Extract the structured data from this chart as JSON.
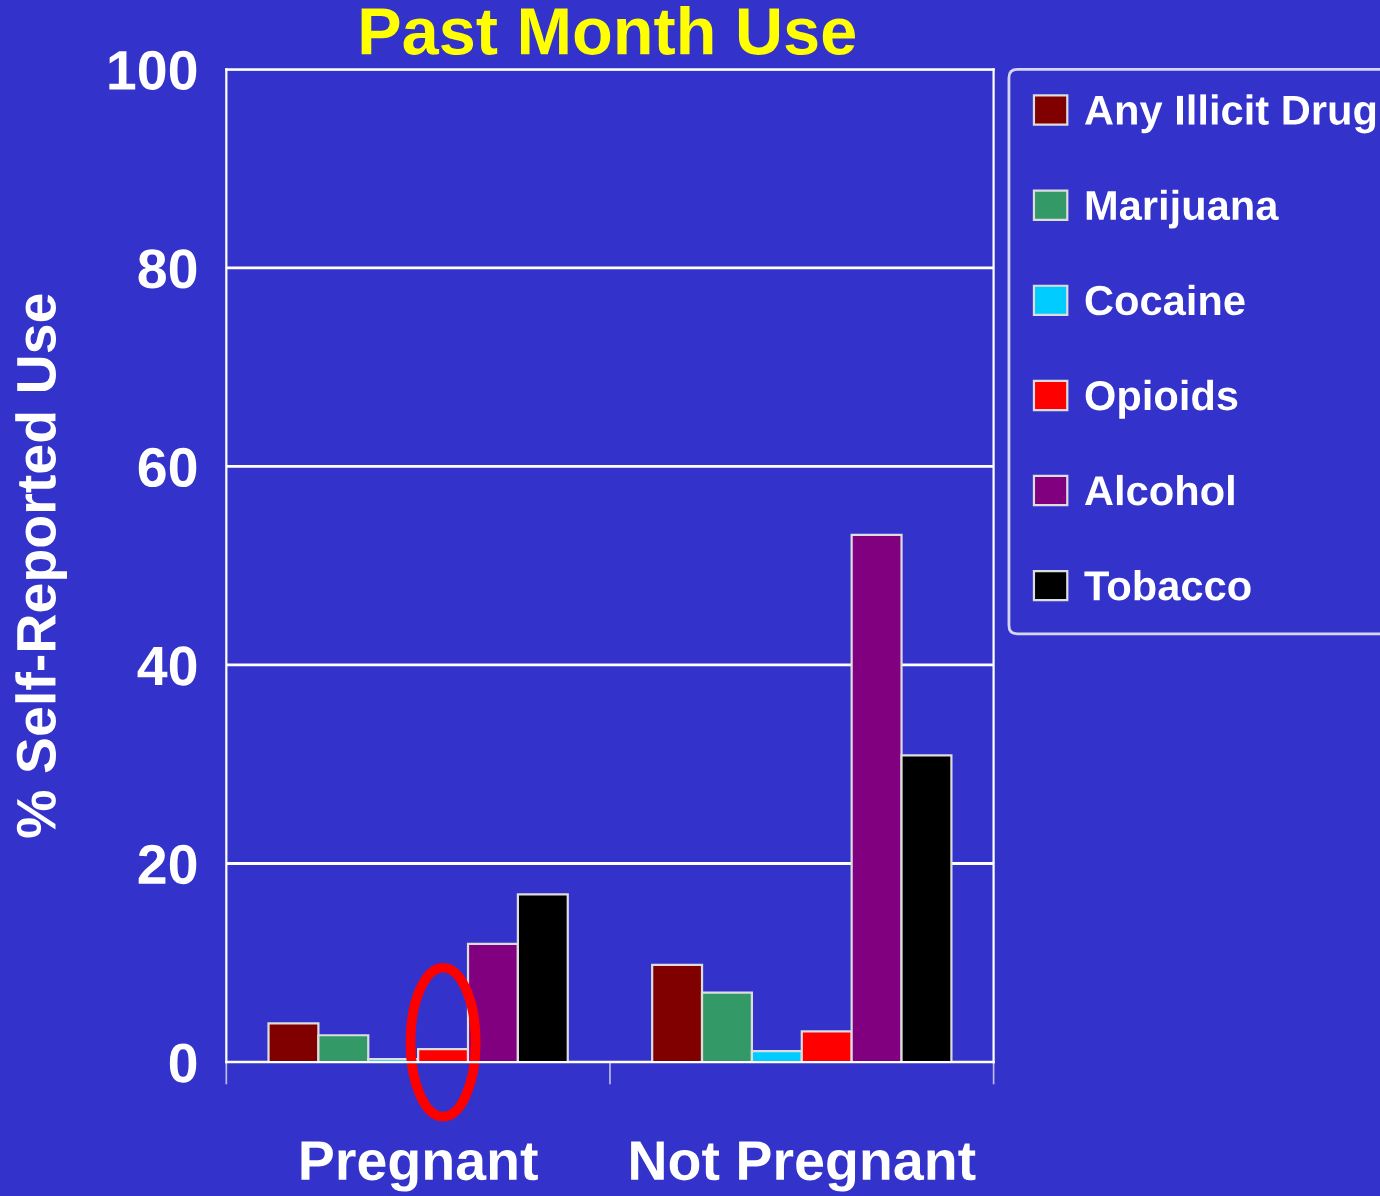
{
  "chart_data": {
    "type": "bar",
    "title": "Past Month Use",
    "ylabel": "% Self-Reported Use",
    "categories": [
      "Pregnant",
      "Not Pregnant"
    ],
    "series": [
      {
        "name": "Any Illicit Drug",
        "color": "#800000",
        "values": [
          3.9,
          9.8
        ]
      },
      {
        "name": "Marijuana",
        "color": "#339966",
        "values": [
          2.7,
          7.0
        ]
      },
      {
        "name": "Cocaine",
        "color": "#00ccff",
        "values": [
          0.3,
          1.1
        ]
      },
      {
        "name": "Opioids",
        "color": "#ff0000",
        "values": [
          1.3,
          3.1
        ]
      },
      {
        "name": "Alcohol",
        "color": "#800080",
        "values": [
          11.9,
          53.1
        ]
      },
      {
        "name": "Tobacco",
        "color": "#000000",
        "values": [
          16.9,
          30.9
        ]
      }
    ],
    "ylim": [
      0,
      100
    ],
    "yticks": [
      0,
      20,
      40,
      60,
      80,
      100
    ],
    "grid": "y",
    "legend": "right"
  }
}
